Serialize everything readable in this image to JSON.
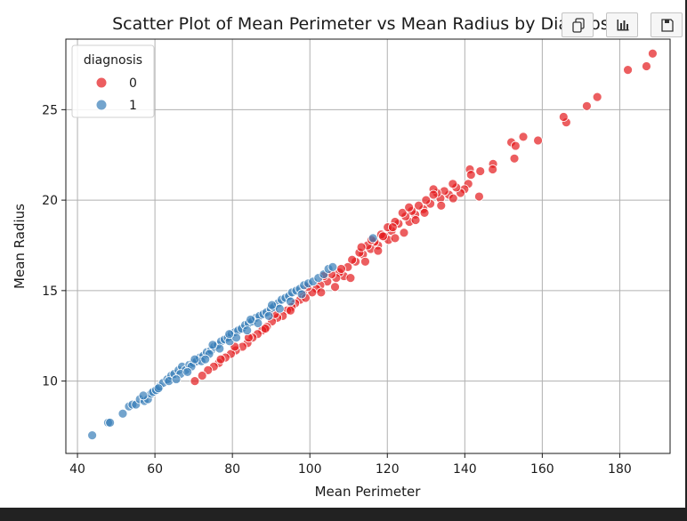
{
  "toolbar": [
    {
      "name": "copy-icon"
    },
    {
      "name": "chart-icon"
    },
    {
      "name": "save-icon"
    }
  ],
  "chart_data": {
    "type": "scatter",
    "title": "Scatter Plot of Mean Perimeter vs Mean Radius by Diagnosis",
    "xlabel": "Mean Perimeter",
    "ylabel": "Mean Radius",
    "xlim": [
      37,
      193
    ],
    "ylim": [
      6.0,
      28.9
    ],
    "xticks": [
      40,
      60,
      80,
      100,
      120,
      140,
      160,
      180
    ],
    "yticks": [
      10,
      15,
      20,
      25
    ],
    "grid": true,
    "legend": {
      "title": "diagnosis",
      "placement": "top-left"
    },
    "series": [
      {
        "name": "0",
        "color": "#e41a1c",
        "points": [
          [
            188.5,
            28.1
          ],
          [
            186.9,
            27.4
          ],
          [
            182.1,
            27.2
          ],
          [
            174.2,
            25.7
          ],
          [
            171.5,
            25.2
          ],
          [
            166.2,
            24.3
          ],
          [
            165.5,
            24.6
          ],
          [
            158.9,
            23.3
          ],
          [
            155.1,
            23.5
          ],
          [
            152.8,
            22.3
          ],
          [
            152.0,
            23.2
          ],
          [
            153.1,
            23.0
          ],
          [
            147.3,
            22.0
          ],
          [
            147.2,
            21.7
          ],
          [
            144.0,
            21.6
          ],
          [
            143.7,
            20.2
          ],
          [
            141.3,
            21.7
          ],
          [
            141.6,
            21.4
          ],
          [
            140.9,
            20.9
          ],
          [
            139.9,
            20.6
          ],
          [
            138.9,
            20.4
          ],
          [
            137.8,
            20.7
          ],
          [
            136.9,
            20.9
          ],
          [
            135.9,
            20.3
          ],
          [
            134.7,
            20.5
          ],
          [
            133.7,
            20.1
          ],
          [
            132.8,
            20.4
          ],
          [
            131.9,
            20.6
          ],
          [
            131.1,
            19.8
          ],
          [
            130.0,
            20.0
          ],
          [
            129.3,
            19.5
          ],
          [
            128.1,
            19.7
          ],
          [
            127.2,
            19.2
          ],
          [
            126.3,
            19.4
          ],
          [
            125.7,
            18.8
          ],
          [
            124.7,
            19.1
          ],
          [
            123.9,
            19.3
          ],
          [
            122.9,
            18.7
          ],
          [
            122.0,
            18.8
          ],
          [
            121.1,
            18.3
          ],
          [
            120.1,
            18.5
          ],
          [
            119.3,
            18.0
          ],
          [
            118.4,
            18.1
          ],
          [
            117.6,
            17.5
          ],
          [
            116.7,
            17.7
          ],
          [
            115.7,
            17.3
          ],
          [
            114.9,
            17.5
          ],
          [
            113.7,
            17.0
          ],
          [
            112.8,
            17.1
          ],
          [
            111.8,
            16.6
          ],
          [
            110.9,
            16.7
          ],
          [
            109.8,
            16.3
          ],
          [
            108.8,
            15.8
          ],
          [
            107.6,
            16.0
          ],
          [
            106.8,
            15.7
          ],
          [
            105.6,
            15.9
          ],
          [
            104.5,
            15.5
          ],
          [
            103.6,
            15.8
          ],
          [
            102.7,
            15.3
          ],
          [
            101.7,
            15.1
          ],
          [
            100.6,
            14.9
          ],
          [
            99.4,
            15.2
          ],
          [
            98.3,
            14.8
          ],
          [
            97.5,
            14.5
          ],
          [
            96.2,
            14.3
          ],
          [
            95.3,
            14.1
          ],
          [
            94.1,
            13.9
          ],
          [
            93.0,
            13.6
          ],
          [
            91.6,
            13.5
          ],
          [
            90.2,
            13.3
          ],
          [
            88.9,
            13.0
          ],
          [
            87.7,
            12.8
          ],
          [
            86.5,
            12.6
          ],
          [
            85.2,
            12.4
          ],
          [
            83.9,
            12.1
          ],
          [
            82.6,
            11.9
          ],
          [
            80.9,
            11.7
          ],
          [
            79.6,
            11.5
          ],
          [
            78.2,
            11.3
          ],
          [
            76.5,
            11.0
          ],
          [
            75.2,
            10.8
          ],
          [
            73.7,
            10.6
          ],
          [
            72.2,
            10.3
          ],
          [
            70.3,
            10.0
          ],
          [
            110.5,
            15.7
          ],
          [
            120.3,
            17.8
          ],
          [
            124.3,
            18.2
          ],
          [
            127.3,
            18.9
          ],
          [
            133.9,
            19.7
          ],
          [
            137.0,
            20.1
          ],
          [
            114.3,
            16.6
          ],
          [
            117.6,
            17.2
          ],
          [
            122.0,
            17.9
          ],
          [
            106.5,
            15.2
          ],
          [
            102.9,
            14.9
          ],
          [
            95.0,
            13.9
          ],
          [
            88.5,
            12.9
          ],
          [
            84.2,
            12.4
          ],
          [
            80.6,
            11.9
          ],
          [
            77.0,
            11.2
          ],
          [
            125.6,
            19.6
          ],
          [
            131.9,
            20.3
          ],
          [
            113.3,
            17.4
          ],
          [
            118.9,
            18.0
          ],
          [
            108.1,
            16.2
          ],
          [
            98.9,
            14.6
          ],
          [
            91.0,
            13.7
          ],
          [
            129.6,
            19.3
          ],
          [
            121.4,
            18.5
          ],
          [
            115.9,
            17.8
          ]
        ]
      },
      {
        "name": "1",
        "color": "#377eb8",
        "points": [
          [
            43.8,
            7.0
          ],
          [
            47.9,
            7.7
          ],
          [
            48.4,
            7.7
          ],
          [
            51.7,
            8.2
          ],
          [
            53.3,
            8.6
          ],
          [
            54.2,
            8.7
          ],
          [
            55.1,
            8.7
          ],
          [
            56.1,
            9.0
          ],
          [
            57.3,
            8.9
          ],
          [
            58.2,
            9.0
          ],
          [
            59.0,
            9.3
          ],
          [
            59.5,
            9.4
          ],
          [
            60.3,
            9.5
          ],
          [
            61.2,
            9.7
          ],
          [
            62.1,
            9.9
          ],
          [
            63.2,
            10.1
          ],
          [
            64.2,
            10.3
          ],
          [
            65.0,
            10.4
          ],
          [
            66.1,
            10.6
          ],
          [
            67.0,
            10.8
          ],
          [
            67.9,
            10.6
          ],
          [
            68.9,
            10.9
          ],
          [
            69.9,
            11.0
          ],
          [
            70.8,
            11.1
          ],
          [
            71.6,
            11.3
          ],
          [
            72.5,
            11.4
          ],
          [
            73.4,
            11.6
          ],
          [
            74.5,
            11.7
          ],
          [
            75.3,
            11.9
          ],
          [
            76.2,
            12.0
          ],
          [
            77.1,
            12.2
          ],
          [
            78.0,
            12.3
          ],
          [
            78.8,
            12.4
          ],
          [
            79.8,
            12.6
          ],
          [
            80.6,
            12.7
          ],
          [
            81.5,
            12.8
          ],
          [
            82.4,
            12.9
          ],
          [
            83.3,
            13.1
          ],
          [
            84.2,
            13.2
          ],
          [
            85.1,
            13.3
          ],
          [
            86.1,
            13.5
          ],
          [
            87.0,
            13.6
          ],
          [
            88.0,
            13.7
          ],
          [
            88.8,
            13.8
          ],
          [
            89.9,
            14.0
          ],
          [
            90.7,
            14.1
          ],
          [
            91.8,
            14.3
          ],
          [
            92.7,
            14.5
          ],
          [
            93.7,
            14.6
          ],
          [
            94.6,
            14.7
          ],
          [
            95.4,
            14.9
          ],
          [
            96.5,
            15.0
          ],
          [
            97.4,
            15.1
          ],
          [
            98.5,
            15.3
          ],
          [
            99.6,
            15.4
          ],
          [
            100.8,
            15.5
          ],
          [
            102.2,
            15.7
          ],
          [
            103.6,
            15.9
          ],
          [
            104.8,
            16.2
          ],
          [
            105.9,
            16.3
          ],
          [
            116.3,
            17.9
          ],
          [
            57.0,
            9.2
          ],
          [
            60.9,
            9.6
          ],
          [
            63.6,
            10.0
          ],
          [
            66.6,
            10.4
          ],
          [
            69.4,
            10.8
          ],
          [
            72.0,
            11.1
          ],
          [
            74.0,
            11.5
          ],
          [
            76.7,
            11.8
          ],
          [
            79.3,
            12.2
          ],
          [
            81.0,
            12.4
          ],
          [
            83.8,
            12.8
          ],
          [
            86.6,
            13.2
          ],
          [
            89.4,
            13.6
          ],
          [
            92.2,
            14.0
          ],
          [
            95.0,
            14.4
          ],
          [
            97.9,
            14.8
          ],
          [
            70.3,
            11.2
          ],
          [
            74.9,
            12.0
          ],
          [
            79.2,
            12.6
          ],
          [
            84.7,
            13.4
          ],
          [
            90.2,
            14.2
          ],
          [
            65.5,
            10.1
          ],
          [
            68.4,
            10.5
          ],
          [
            73.0,
            11.2
          ]
        ]
      }
    ]
  }
}
